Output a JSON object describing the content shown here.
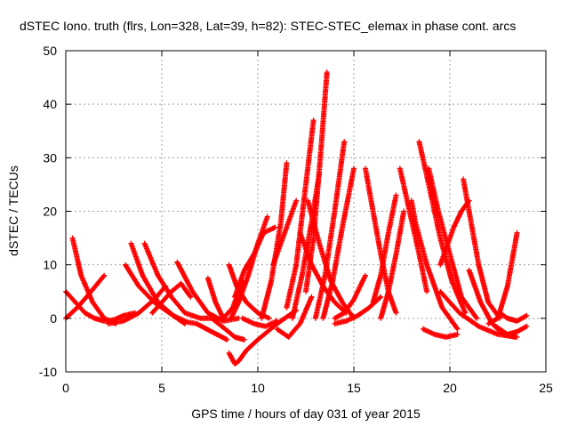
{
  "chart_data": {
    "type": "scatter",
    "title": "dSTEC Iono. truth (flrs, Lon=328, Lat=39, h=82): STEC-STEC_elemax in phase cont. arcs",
    "xlabel": "GPS time / hours of day 031 of year 2015",
    "ylabel": "dSTEC  / TECUs",
    "xlim": [
      0,
      25
    ],
    "ylim": [
      -10,
      50
    ],
    "xticks": [
      0,
      5,
      10,
      15,
      20,
      25
    ],
    "yticks": [
      -10,
      0,
      10,
      20,
      30,
      40,
      50
    ],
    "grid": true,
    "marker": "+",
    "series_color": "#ff0000",
    "series": [
      {
        "x": [
          0.0,
          1.0,
          1.5,
          2.0,
          2.5,
          3.0,
          3.6
        ],
        "y": [
          5.0,
          1.0,
          0.0,
          -0.5,
          -0.3,
          0.5,
          1.0
        ]
      },
      {
        "x": [
          0.0,
          0.6,
          1.2,
          2.0
        ],
        "y": [
          0.0,
          2.0,
          4.5,
          8.0
        ]
      },
      {
        "x": [
          0.35,
          0.8,
          1.4,
          2.0,
          2.6
        ],
        "y": [
          15.0,
          8.0,
          3.0,
          0.0,
          -1.0
        ]
      },
      {
        "x": [
          2.2,
          3.0,
          3.8,
          4.6,
          5.2
        ],
        "y": [
          -1.0,
          -0.5,
          1.0,
          3.5,
          6.0
        ]
      },
      {
        "x": [
          3.4,
          4.0,
          4.8,
          5.6,
          6.2
        ],
        "y": [
          14.0,
          8.0,
          3.0,
          0.5,
          -0.5
        ]
      },
      {
        "x": [
          4.1,
          4.8,
          5.5,
          6.2,
          7.0,
          7.6
        ],
        "y": [
          14.0,
          8.0,
          4.0,
          1.0,
          0.0,
          0.0
        ]
      },
      {
        "x": [
          3.1,
          3.8,
          4.6,
          5.4,
          6.2
        ],
        "y": [
          10.0,
          6.0,
          3.0,
          1.0,
          -1.0
        ]
      },
      {
        "x": [
          4.5,
          5.0,
          5.5,
          6.0,
          6.5
        ],
        "y": [
          1.0,
          3.0,
          5.0,
          6.5,
          4.0
        ]
      },
      {
        "x": [
          5.8,
          6.6,
          7.4,
          8.2,
          9.0
        ],
        "y": [
          10.5,
          5.0,
          1.0,
          -0.5,
          0.0
        ]
      },
      {
        "x": [
          6.0,
          6.8,
          7.6,
          8.4
        ],
        "y": [
          -0.5,
          -1.0,
          -2.5,
          -4.0
        ]
      },
      {
        "x": [
          7.4,
          7.8,
          8.2,
          8.7,
          9.2
        ],
        "y": [
          7.5,
          3.0,
          0.0,
          2.0,
          7.0
        ]
      },
      {
        "x": [
          7.6,
          8.3,
          8.8,
          9.3
        ],
        "y": [
          0.0,
          -2.0,
          -3.5,
          -4.0
        ]
      },
      {
        "x": [
          8.5,
          8.8,
          9.0,
          9.4,
          10.0,
          11.0,
          12.0
        ],
        "y": [
          -6.5,
          -8.5,
          -8.0,
          -6.0,
          -4.0,
          -1.0,
          1.5
        ]
      },
      {
        "x": [
          8.5,
          8.9,
          9.4,
          10.0,
          10.6
        ],
        "y": [
          10.0,
          6.0,
          3.0,
          1.0,
          0.0
        ]
      },
      {
        "x": [
          8.6,
          9.0,
          9.5,
          10.0,
          10.5
        ],
        "y": [
          0.0,
          3.0,
          8.0,
          14.0,
          19.0
        ]
      },
      {
        "x": [
          8.8,
          9.3,
          9.8,
          10.3,
          10.9
        ],
        "y": [
          4.0,
          9.0,
          12.0,
          16.0,
          17.0
        ]
      },
      {
        "x": [
          9.2,
          9.8,
          10.4,
          11.0
        ],
        "y": [
          0.0,
          -1.0,
          -1.5,
          -0.5
        ]
      },
      {
        "x": [
          10.2,
          10.7,
          11.2,
          11.5
        ],
        "y": [
          0.0,
          7.0,
          18.0,
          29.0
        ]
      },
      {
        "x": [
          10.8,
          11.2,
          11.6,
          12.0
        ],
        "y": [
          10.0,
          14.0,
          18.0,
          22.0
        ]
      },
      {
        "x": [
          11.0,
          11.6,
          12.2,
          12.8
        ],
        "y": [
          -2.0,
          -3.5,
          -1.0,
          4.0
        ]
      },
      {
        "x": [
          11.5,
          12.0,
          12.5,
          12.9
        ],
        "y": [
          2.0,
          10.0,
          25.0,
          37.0
        ]
      },
      {
        "x": [
          11.8,
          12.3,
          12.8,
          13.2
        ],
        "y": [
          0.0,
          8.0,
          18.0,
          27.0
        ]
      },
      {
        "x": [
          12.5,
          12.9,
          13.3,
          13.6
        ],
        "y": [
          5.0,
          15.0,
          32.0,
          46.0
        ]
      },
      {
        "x": [
          13.0,
          13.5,
          14.0,
          14.5
        ],
        "y": [
          0.0,
          8.0,
          20.0,
          33.0
        ]
      },
      {
        "x": [
          13.4,
          13.9,
          14.4,
          15.0
        ],
        "y": [
          0.0,
          7.0,
          17.0,
          28.0
        ]
      },
      {
        "x": [
          12.6,
          13.2,
          13.8,
          14.4,
          15.0
        ],
        "y": [
          22.0,
          14.0,
          7.0,
          3.0,
          0.0
        ]
      },
      {
        "x": [
          12.2,
          12.8,
          13.4,
          14.0,
          14.6
        ],
        "y": [
          16.0,
          10.0,
          6.0,
          3.0,
          1.0
        ]
      },
      {
        "x": [
          14.0,
          14.5,
          15.0,
          15.6
        ],
        "y": [
          0.0,
          1.0,
          3.5,
          8.0
        ]
      },
      {
        "x": [
          14.0,
          14.6,
          15.2,
          15.8,
          16.4
        ],
        "y": [
          -1.0,
          -0.5,
          0.5,
          2.0,
          4.0
        ]
      },
      {
        "x": [
          15.6,
          16.0,
          16.4,
          16.8,
          17.2
        ],
        "y": [
          28.0,
          20.0,
          12.0,
          5.0,
          1.0
        ]
      },
      {
        "x": [
          16.0,
          16.4,
          16.8,
          17.2
        ],
        "y": [
          3.0,
          8.0,
          16.0,
          23.0
        ]
      },
      {
        "x": [
          16.4,
          16.8,
          17.2,
          17.6
        ],
        "y": [
          0.0,
          5.0,
          12.0,
          20.0
        ]
      },
      {
        "x": [
          17.4,
          17.9,
          18.4,
          18.8
        ],
        "y": [
          28.0,
          20.0,
          12.0,
          5.0
        ]
      },
      {
        "x": [
          18.0,
          18.2,
          18.8,
          19.6,
          20.4
        ],
        "y": [
          22.0,
          18.0,
          10.0,
          2.0,
          -2.0
        ]
      },
      {
        "x": [
          18.4,
          18.9,
          19.5,
          20.1,
          20.8
        ],
        "y": [
          33.0,
          25.0,
          15.0,
          7.0,
          1.0
        ]
      },
      {
        "x": [
          18.9,
          19.4,
          20.0,
          20.6,
          21.4
        ],
        "y": [
          28.0,
          20.0,
          12.0,
          4.0,
          0.0
        ]
      },
      {
        "x": [
          19.5,
          19.9,
          20.2,
          20.6,
          21.0
        ],
        "y": [
          10.0,
          14.0,
          17.0,
          20.0,
          22.0
        ]
      },
      {
        "x": [
          20.7,
          21.1,
          21.5,
          22.0,
          22.6
        ],
        "y": [
          26.0,
          18.0,
          10.0,
          3.0,
          0.0
        ]
      },
      {
        "x": [
          21.0,
          21.6,
          22.2,
          22.8,
          23.4
        ],
        "y": [
          9.0,
          3.0,
          -1.0,
          -3.0,
          -3.5
        ]
      },
      {
        "x": [
          22.0,
          22.5,
          23.0,
          23.5
        ],
        "y": [
          -1.0,
          0.0,
          6.0,
          16.0
        ]
      },
      {
        "x": [
          22.6,
          23.0,
          23.5,
          24.0
        ],
        "y": [
          1.0,
          0.0,
          -0.5,
          0.5
        ]
      },
      {
        "x": [
          22.4,
          23.0,
          23.5,
          24.0
        ],
        "y": [
          -1.5,
          -3.0,
          -2.5,
          -1.5
        ]
      },
      {
        "x": [
          19.5,
          20.5,
          21.5,
          22.5,
          23.5
        ],
        "y": [
          5.0,
          1.0,
          -1.5,
          -3.0,
          -3.5
        ]
      },
      {
        "x": [
          18.6,
          19.2,
          19.8,
          20.4
        ],
        "y": [
          -2.0,
          -3.0,
          -3.5,
          -3.0
        ]
      }
    ]
  }
}
